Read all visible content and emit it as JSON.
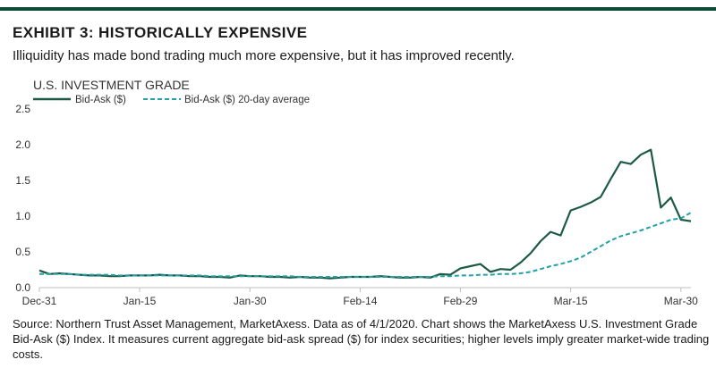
{
  "header": {
    "title": "EXHIBIT 3: HISTORICALLY EXPENSIVE",
    "subtitle": "Illiquidity has made bond trading much more expensive, but it has improved recently."
  },
  "footer": {
    "source": "Source: Northern Trust Asset Management, MarketAxess. Data as of 4/1/2020. Chart shows the MarketAxess U.S. Investment Grade Bid-Ask ($) Index. It measures current aggregate bid-ask spread ($) for index securities; higher levels imply greater market-wide trading costs."
  },
  "colors": {
    "rule": "#0c4a36",
    "series_solid": "#1d5a44",
    "series_dashed": "#23a0a8",
    "axis": "#bfbfbf"
  },
  "chart_data": {
    "type": "line",
    "title": "U.S. INVESTMENT GRADE",
    "xlabel": "",
    "ylabel": "",
    "ylim": [
      0,
      2.5
    ],
    "yticks": [
      "0.0",
      "0.5",
      "1.0",
      "1.5",
      "2.0",
      "2.5"
    ],
    "xticks": [
      {
        "label": "Dec-31",
        "index": 0
      },
      {
        "label": "Jan-15",
        "index": 10
      },
      {
        "label": "Jan-30",
        "index": 21
      },
      {
        "label": "Feb-14",
        "index": 32
      },
      {
        "label": "Feb-29",
        "index": 42
      },
      {
        "label": "Mar-15",
        "index": 53
      },
      {
        "label": "Mar-30",
        "index": 64
      }
    ],
    "legend_position": "top-left",
    "grid": false,
    "x_count": 66,
    "series": [
      {
        "name": "Bid-Ask ($)",
        "style": "solid",
        "values": [
          0.24,
          0.19,
          0.2,
          0.19,
          0.18,
          0.17,
          0.17,
          0.16,
          0.16,
          0.17,
          0.17,
          0.17,
          0.18,
          0.17,
          0.17,
          0.16,
          0.16,
          0.15,
          0.15,
          0.14,
          0.17,
          0.16,
          0.16,
          0.15,
          0.15,
          0.14,
          0.15,
          0.14,
          0.14,
          0.13,
          0.14,
          0.15,
          0.15,
          0.15,
          0.16,
          0.15,
          0.14,
          0.14,
          0.15,
          0.14,
          0.19,
          0.18,
          0.27,
          0.3,
          0.33,
          0.22,
          0.26,
          0.25,
          0.35,
          0.48,
          0.65,
          0.78,
          0.73,
          1.08,
          1.13,
          1.19,
          1.27,
          1.52,
          1.76,
          1.73,
          1.86,
          1.93,
          1.12,
          1.26,
          0.95,
          0.93
        ]
      },
      {
        "name": "Bid-Ask ($) 20-day average",
        "style": "dashed",
        "values": [
          0.19,
          0.19,
          0.19,
          0.19,
          0.18,
          0.18,
          0.18,
          0.18,
          0.17,
          0.17,
          0.17,
          0.17,
          0.17,
          0.17,
          0.17,
          0.17,
          0.17,
          0.16,
          0.16,
          0.16,
          0.16,
          0.16,
          0.16,
          0.16,
          0.16,
          0.16,
          0.15,
          0.15,
          0.15,
          0.15,
          0.15,
          0.15,
          0.15,
          0.15,
          0.15,
          0.15,
          0.15,
          0.15,
          0.15,
          0.15,
          0.16,
          0.16,
          0.17,
          0.17,
          0.18,
          0.18,
          0.19,
          0.19,
          0.2,
          0.22,
          0.26,
          0.3,
          0.33,
          0.37,
          0.42,
          0.5,
          0.58,
          0.66,
          0.72,
          0.76,
          0.8,
          0.85,
          0.9,
          0.95,
          0.97,
          1.05
        ]
      }
    ]
  }
}
